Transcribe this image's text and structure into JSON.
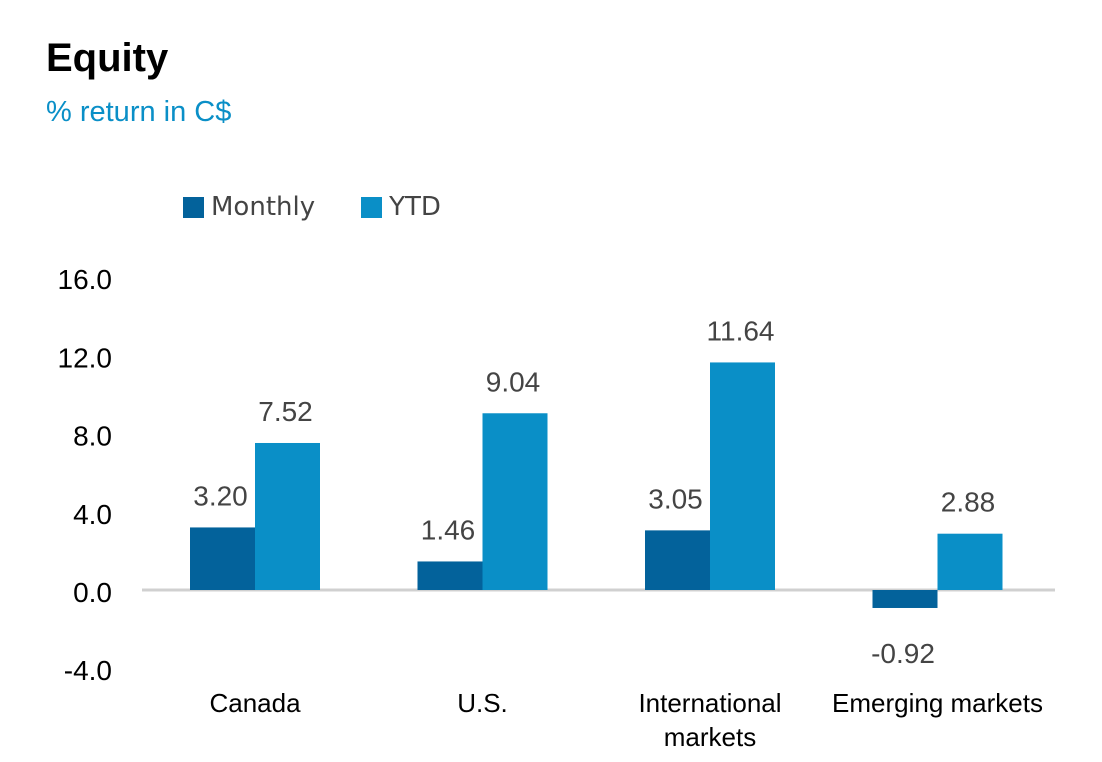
{
  "title": "Equity",
  "subtitle": "% return in C$",
  "colors": {
    "monthly": "#03629b",
    "ytd": "#0a8fc7",
    "axis": "#d0d0d0"
  },
  "chart_data": {
    "type": "bar",
    "categories": [
      "Canada",
      "U.S.",
      "International markets",
      "Emerging markets"
    ],
    "category_lines": [
      [
        "Canada"
      ],
      [
        "U.S."
      ],
      [
        "International",
        "markets"
      ],
      [
        "Emerging markets"
      ]
    ],
    "series": [
      {
        "name": "Monthly",
        "values": [
          3.2,
          1.46,
          3.05,
          -0.92
        ],
        "labels": [
          "3.20",
          "1.46",
          "3.05",
          "-0.92"
        ]
      },
      {
        "name": "YTD",
        "values": [
          7.52,
          9.04,
          11.64,
          2.88
        ],
        "labels": [
          "7.52",
          "9.04",
          "11.64",
          "2.88"
        ]
      }
    ],
    "yticks": [
      "16.0",
      "12.0",
      "8.0",
      "4.0",
      "0.0",
      "-4.0"
    ],
    "ytick_values": [
      16,
      12,
      8,
      4,
      0,
      -4
    ],
    "ylim": [
      -4,
      16
    ],
    "legend_position": "top-left"
  }
}
